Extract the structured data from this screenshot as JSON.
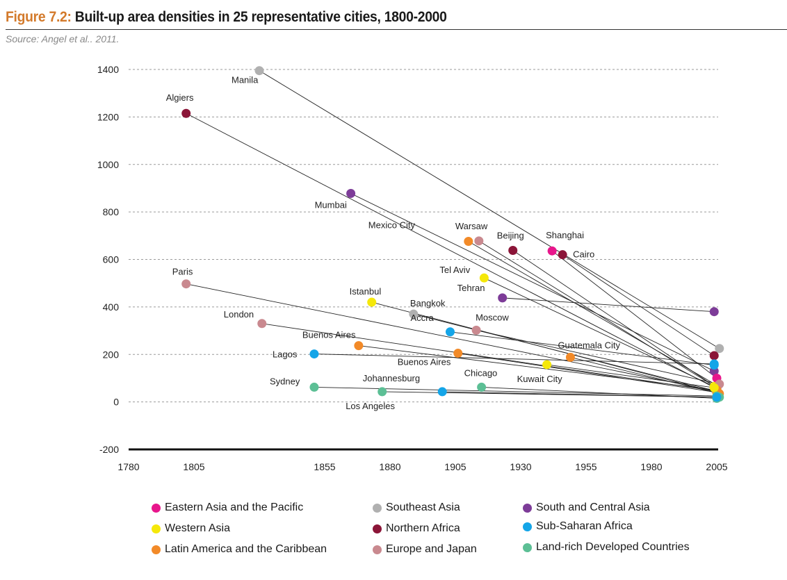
{
  "header": {
    "figure_label": "Figure 7.2:",
    "title": "Built-up area densities in 25 representative cities, 1800-2000",
    "source": "Source: Angel et al.. 2011."
  },
  "chart_data": {
    "type": "scatter",
    "title": "Built-up area densities in 25 representative cities, 1800-2000",
    "xlim": [
      1780,
      2005
    ],
    "ylim": [
      -200,
      1400
    ],
    "x_ticks": [
      "1780",
      "1805",
      "1855",
      "1880",
      "1905",
      "1930",
      "1955",
      "1980",
      "2005"
    ],
    "y_ticks": [
      "-200",
      "0",
      "200",
      "400",
      "600",
      "800",
      "1000",
      "1200",
      "1400"
    ],
    "grid": true,
    "legend_position": "bottom",
    "region_colors": {
      "Eastern Asia and the Pacific": "#e8168c",
      "Southeast Asia": "#b0b0b0",
      "South and Central Asia": "#7d3c98",
      "Western Asia": "#f5e80a",
      "Northern Africa": "#8b1538",
      "Sub-Saharan Africa": "#14a5e8",
      "Latin America and the Caribbean": "#f28a28",
      "Europe and Japan": "#c9898f",
      "Land-rich Developed Countries": "#5cbf95"
    },
    "legend": [
      "Eastern Asia and the Pacific",
      "Southeast Asia",
      "South and Central Asia",
      "Western Asia",
      "Northern Africa",
      "Sub-Saharan Africa",
      "Latin America and the Caribbean",
      "Europe and Japan",
      "Land-rich Developed Countries"
    ],
    "cities": [
      {
        "name": "Manila",
        "region": "Southeast Asia",
        "x": 1830,
        "y": 1395,
        "end": [
          2006,
          225
        ]
      },
      {
        "name": "Algiers",
        "region": "Northern Africa",
        "x": 1802,
        "y": 1215,
        "end": [
          2005,
          55
        ]
      },
      {
        "name": "Mumbai",
        "region": "South and Central Asia",
        "x": 1865,
        "y": 878,
        "end": [
          2004,
          130
        ]
      },
      {
        "name": "Warsaw",
        "region": "Europe and Japan",
        "x": 1914,
        "y": 678,
        "end": [
          2005,
          60
        ]
      },
      {
        "name": "Mexico City",
        "region": "Latin America and the Caribbean",
        "x": 1910,
        "y": 676,
        "end": [
          2005,
          70
        ]
      },
      {
        "name": "Beijing",
        "region": "Northern Africa",
        "x": 1927,
        "y": 638,
        "end": [
          2005,
          60
        ]
      },
      {
        "name": "Shanghai",
        "region": "Eastern Asia and the Pacific",
        "x": 1942,
        "y": 636,
        "end": [
          2005,
          100
        ]
      },
      {
        "name": "Cairo",
        "region": "Northern Africa",
        "x": 1946,
        "y": 620,
        "end": [
          2004,
          195
        ]
      },
      {
        "name": "Tel Aviv",
        "region": "Western Asia",
        "x": 1916,
        "y": 522,
        "end": [
          2004,
          65
        ]
      },
      {
        "name": "Paris",
        "region": "Europe and Japan",
        "x": 1802,
        "y": 497,
        "end": [
          2005,
          45
        ]
      },
      {
        "name": "Istanbul",
        "region": "Western Asia",
        "x": 1873,
        "y": 420,
        "end": [
          2005,
          40
        ]
      },
      {
        "name": "Tehran",
        "region": "South and Central Asia",
        "x": 1923,
        "y": 438,
        "end": [
          2004,
          380
        ]
      },
      {
        "name": "Bangkok",
        "region": "Southeast Asia",
        "x": 1889,
        "y": 370,
        "end": [
          2005,
          45
        ]
      },
      {
        "name": "London",
        "region": "Europe and Japan",
        "x": 1831,
        "y": 330,
        "end": [
          2005,
          45
        ]
      },
      {
        "name": "Moscow",
        "region": "Europe and Japan",
        "x": 1913,
        "y": 302,
        "end": [
          2006,
          75
        ]
      },
      {
        "name": "Accra",
        "region": "Sub-Saharan Africa",
        "x": 1903,
        "y": 295,
        "end": [
          2004,
          155
        ]
      },
      {
        "name": "Buenos Aires",
        "region": "Latin America and the Caribbean",
        "x": 1868,
        "y": 237,
        "end": [
          2005,
          50
        ]
      },
      {
        "name": "Guatemala City",
        "region": "Latin America and the Caribbean",
        "x": 1949,
        "y": 188,
        "end": [
          2006,
          35
        ]
      },
      {
        "name": "Lagos",
        "region": "Sub-Saharan Africa",
        "x": 1851,
        "y": 202,
        "end": [
          2004,
          160
        ]
      },
      {
        "name": "Buenos Aires",
        "region": "Latin America and the Caribbean",
        "x": 1906,
        "y": 205,
        "end": [
          2005,
          40
        ]
      },
      {
        "name": "Kuwait City",
        "region": "Western Asia",
        "x": 1940,
        "y": 157,
        "end": [
          2004,
          60
        ]
      },
      {
        "name": "Sydney",
        "region": "Land-rich Developed Countries",
        "x": 1851,
        "y": 62,
        "end": [
          2005,
          25
        ]
      },
      {
        "name": "Chicago",
        "region": "Land-rich Developed Countries",
        "x": 1915,
        "y": 62,
        "end": [
          2005,
          15
        ]
      },
      {
        "name": "Johannesburg",
        "region": "Land-rich Developed Countries",
        "x": 1877,
        "y": 43,
        "end": [
          2006,
          20
        ]
      },
      {
        "name": "Los Angeles",
        "region": "Sub-Saharan Africa",
        "x": 1900,
        "y": 43,
        "end": [
          2005,
          20
        ]
      }
    ]
  }
}
